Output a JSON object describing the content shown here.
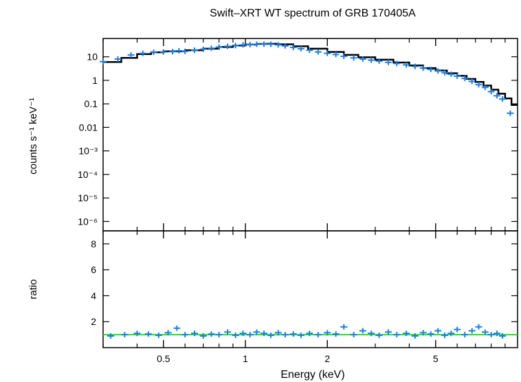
{
  "chart_data": [
    {
      "type": "scatter",
      "panel": "spectrum",
      "title": "Swift–XRT WT spectrum of GRB 170405A",
      "ylabel": "counts s⁻¹ keV⁻¹",
      "xscale": "log",
      "yscale": "log",
      "xlim": [
        0.3,
        10
      ],
      "ylim": [
        4e-07,
        60
      ],
      "yticks": [
        {
          "value": 10,
          "label": "10"
        },
        {
          "value": 1,
          "label": "1"
        },
        {
          "value": 0.1,
          "label": "0.1"
        },
        {
          "value": 0.01,
          "label": "0.01"
        },
        {
          "value": 0.001,
          "label": "10⁻³"
        },
        {
          "value": 0.0001,
          "label": "10⁻⁴"
        },
        {
          "value": 1e-05,
          "label": "10⁻⁵"
        },
        {
          "value": 1e-06,
          "label": "10⁻⁶"
        }
      ],
      "series": [
        {
          "kind": "data",
          "color": "#1a7fe6",
          "x": [
            0.3,
            0.34,
            0.38,
            0.42,
            0.46,
            0.5,
            0.54,
            0.57,
            0.6,
            0.65,
            0.7,
            0.75,
            0.8,
            0.86,
            0.92,
            0.98,
            1.04,
            1.1,
            1.17,
            1.24,
            1.32,
            1.4,
            1.5,
            1.6,
            1.72,
            1.85,
            2.0,
            2.15,
            2.3,
            2.5,
            2.7,
            2.9,
            3.1,
            3.35,
            3.6,
            3.9,
            4.2,
            4.5,
            4.8,
            5.1,
            5.4,
            5.7,
            6.0,
            6.4,
            6.8,
            7.2,
            7.6,
            8.0,
            8.4,
            8.8,
            9.4
          ],
          "y": [
            6.2,
            8.0,
            12.0,
            14.0,
            15.5,
            16.0,
            16.5,
            18.0,
            17.0,
            19.0,
            21.0,
            23.0,
            26.0,
            28.0,
            30.0,
            32.0,
            33.0,
            34.0,
            34.5,
            34.0,
            32.0,
            29.0,
            25.0,
            22.0,
            19.0,
            16.0,
            14.0,
            12.5,
            10.5,
            9.0,
            8.0,
            7.2,
            6.5,
            5.8,
            5.2,
            4.5,
            3.9,
            3.3,
            2.9,
            2.5,
            2.1,
            1.8,
            1.5,
            1.2,
            0.9,
            0.65,
            0.5,
            0.33,
            0.22,
            0.16,
            0.04
          ]
        },
        {
          "kind": "model",
          "color": "#000000",
          "x": [
            0.3,
            0.35,
            0.4,
            0.45,
            0.5,
            0.6,
            0.7,
            0.8,
            0.9,
            1.0,
            1.1,
            1.2,
            1.3,
            1.5,
            1.7,
            2.0,
            2.3,
            2.6,
            3.0,
            3.5,
            4.0,
            4.5,
            5.0,
            5.5,
            6.0,
            6.5,
            7.0,
            7.5,
            8.0,
            8.5,
            9.0,
            9.5,
            10.0
          ],
          "y": [
            6.0,
            9.0,
            13.0,
            15.5,
            17.0,
            19.0,
            22.0,
            26.0,
            30.0,
            33.0,
            35.0,
            35.5,
            34.0,
            28.0,
            22.0,
            16.0,
            12.0,
            9.5,
            7.5,
            5.7,
            4.3,
            3.3,
            2.6,
            2.0,
            1.55,
            1.15,
            0.85,
            0.6,
            0.4,
            0.27,
            0.17,
            0.09,
            0.09
          ]
        }
      ]
    },
    {
      "type": "scatter",
      "panel": "ratio",
      "xlabel": "Energy (keV)",
      "ylabel": "ratio",
      "xscale": "log",
      "xlim": [
        0.3,
        10
      ],
      "ylim": [
        0,
        9
      ],
      "yticks": [
        2,
        4,
        6,
        8
      ],
      "xticks": [
        {
          "value": 0.5,
          "label": "0.5"
        },
        {
          "value": 1,
          "label": "1"
        },
        {
          "value": 2,
          "label": "2"
        },
        {
          "value": 5,
          "label": "5"
        }
      ],
      "series": [
        {
          "kind": "data",
          "color": "#1a7fe6",
          "x": [
            0.32,
            0.36,
            0.4,
            0.44,
            0.48,
            0.52,
            0.56,
            0.6,
            0.65,
            0.7,
            0.75,
            0.8,
            0.86,
            0.92,
            0.98,
            1.04,
            1.1,
            1.17,
            1.24,
            1.32,
            1.4,
            1.5,
            1.6,
            1.72,
            1.85,
            2.0,
            2.15,
            2.3,
            2.5,
            2.7,
            2.9,
            3.1,
            3.35,
            3.6,
            3.9,
            4.2,
            4.5,
            4.8,
            5.1,
            5.4,
            5.7,
            6.0,
            6.4,
            6.8,
            7.2,
            7.6,
            8.0,
            8.4,
            8.8
          ],
          "y": [
            0.9,
            1.0,
            1.1,
            1.05,
            0.95,
            1.15,
            1.5,
            1.0,
            1.1,
            0.9,
            1.05,
            1.0,
            1.2,
            0.95,
            1.1,
            1.0,
            1.2,
            1.1,
            0.95,
            1.15,
            1.0,
            1.05,
            0.95,
            1.1,
            1.0,
            1.15,
            1.05,
            1.6,
            1.0,
            1.3,
            1.1,
            0.95,
            1.2,
            1.0,
            1.1,
            0.9,
            1.15,
            1.05,
            1.3,
            0.95,
            1.1,
            1.4,
            1.0,
            1.3,
            1.6,
            1.2,
            1.0,
            1.1,
            0.9
          ]
        },
        {
          "kind": "reference",
          "color": "#22dd22",
          "y_value": 1
        }
      ]
    }
  ]
}
